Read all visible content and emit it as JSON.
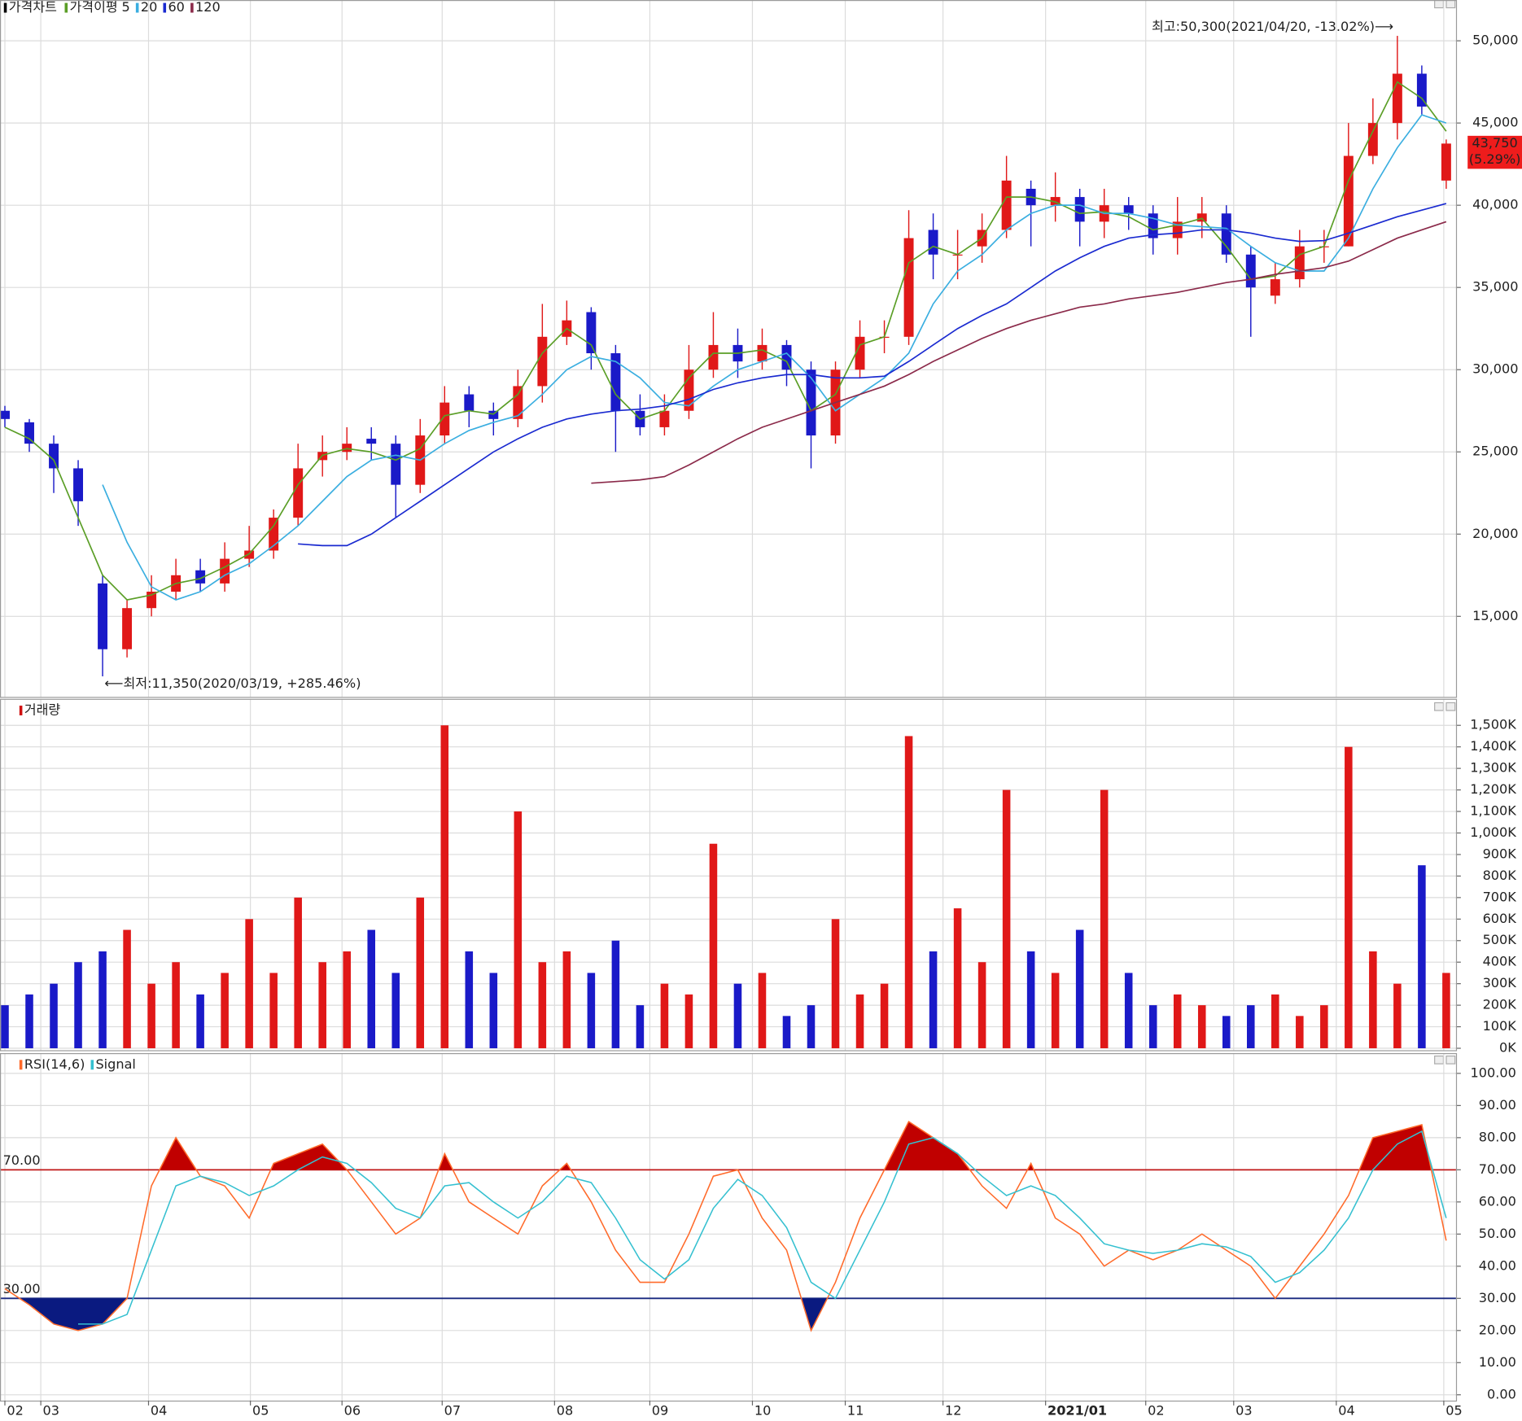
{
  "chart_data": [
    {
      "type": "candlestick",
      "title": "가격차트",
      "ma_title": "가격이평",
      "open": [
        27500,
        26800,
        25500,
        24000,
        17000,
        13000,
        15500,
        16500,
        17800,
        17000,
        18500,
        19000,
        21000,
        24500,
        25000,
        25800,
        25500,
        23000,
        26000,
        28500,
        27500,
        27000,
        29000,
        32000,
        33500,
        31000,
        27500,
        26500,
        27500,
        30000,
        31500,
        30500,
        31500,
        30000,
        26000,
        30000,
        32000,
        32000,
        38500,
        37000,
        37500,
        38500,
        41000,
        40000,
        40500,
        39000,
        40000,
        39500,
        38000,
        39000,
        39500,
        37000,
        34500,
        35500,
        37500,
        37500,
        43000,
        45000,
        48000,
        41500
      ],
      "high": [
        27800,
        27000,
        26000,
        24500,
        17500,
        16000,
        17500,
        18500,
        18500,
        19500,
        20500,
        21500,
        25500,
        26000,
        26500,
        26500,
        26000,
        27000,
        29000,
        29000,
        28000,
        30000,
        34000,
        34200,
        33800,
        31500,
        28500,
        28500,
        31500,
        33500,
        32500,
        32500,
        31800,
        30500,
        30500,
        33000,
        33000,
        39700,
        39500,
        38500,
        39500,
        43000,
        41500,
        42000,
        41000,
        41000,
        40500,
        40000,
        40500,
        40500,
        40000,
        37500,
        36500,
        38500,
        38500,
        45000,
        46500,
        50300,
        48500,
        44000
      ],
      "low": [
        26500,
        25000,
        22500,
        20500,
        11350,
        12500,
        15000,
        16000,
        16500,
        16500,
        18000,
        18500,
        20500,
        23500,
        24500,
        24500,
        21000,
        22500,
        25500,
        26500,
        26000,
        26500,
        28000,
        31500,
        30000,
        25000,
        26000,
        26000,
        27000,
        29500,
        29500,
        30000,
        29000,
        24000,
        25500,
        29500,
        31000,
        31500,
        35500,
        35500,
        36500,
        38000,
        37500,
        39000,
        37500,
        38000,
        38500,
        37000,
        37000,
        38000,
        36500,
        32000,
        34000,
        35000,
        36500,
        37500,
        42500,
        44000,
        45500,
        41000
      ],
      "close": [
        27000,
        25500,
        24000,
        22000,
        13000,
        15500,
        16500,
        17500,
        17000,
        18500,
        19000,
        21000,
        24000,
        25000,
        25500,
        25500,
        23000,
        26000,
        28000,
        27500,
        27000,
        29000,
        32000,
        33000,
        31000,
        27500,
        26500,
        27500,
        30000,
        31500,
        30500,
        31500,
        30000,
        26000,
        30000,
        32000,
        32000,
        38000,
        37000,
        37000,
        38500,
        41500,
        40000,
        40500,
        39000,
        40000,
        39500,
        38000,
        39000,
        39500,
        37000,
        35000,
        35500,
        37500,
        37500,
        43000,
        45000,
        48000,
        46000,
        43750
      ],
      "up_color": "#e01818",
      "down_color": "#1a1ac8",
      "series": [
        {
          "name": "5",
          "color": "#5a9e26",
          "values": [
            26500,
            25800,
            24500,
            21000,
            17500,
            16000,
            16300,
            17000,
            17300,
            18000,
            18800,
            20500,
            23000,
            24800,
            25200,
            25000,
            24500,
            25200,
            27200,
            27500,
            27300,
            28500,
            31000,
            32500,
            31500,
            28500,
            27000,
            27500,
            29500,
            31000,
            31000,
            31200,
            30500,
            27500,
            28500,
            31500,
            32000,
            36500,
            37500,
            37000,
            38000,
            40500,
            40500,
            40200,
            39500,
            39600,
            39300,
            38500,
            38800,
            39200,
            37500,
            35500,
            35700,
            37000,
            37500,
            41500,
            44500,
            47500,
            46500,
            44500
          ]
        },
        {
          "name": "20",
          "color": "#3aaee0",
          "values": [
            null,
            null,
            null,
            null,
            23000,
            19500,
            16800,
            16000,
            16500,
            17500,
            18200,
            19300,
            20500,
            22000,
            23500,
            24500,
            24800,
            24500,
            25500,
            26300,
            26800,
            27200,
            28500,
            30000,
            30800,
            30500,
            29500,
            28000,
            27800,
            29000,
            30000,
            30500,
            31000,
            29500,
            27500,
            28500,
            29500,
            31000,
            34000,
            36000,
            37000,
            38500,
            39500,
            40000,
            40000,
            39500,
            39500,
            39200,
            38800,
            38700,
            38600,
            37500,
            36500,
            36000,
            36000,
            38000,
            41000,
            43500,
            45500,
            45000
          ]
        },
        {
          "name": "60",
          "color": "#1a2ad0",
          "values": [
            null,
            null,
            null,
            null,
            null,
            null,
            null,
            null,
            null,
            null,
            null,
            null,
            19400,
            19300,
            19300,
            20000,
            21000,
            22000,
            23000,
            24000,
            25000,
            25800,
            26500,
            27000,
            27300,
            27500,
            27600,
            27800,
            28200,
            28800,
            29200,
            29500,
            29700,
            29700,
            29500,
            29500,
            29600,
            30500,
            31500,
            32500,
            33300,
            34000,
            35000,
            36000,
            36800,
            37500,
            38000,
            38200,
            38300,
            38500,
            38500,
            38300,
            38000,
            37800,
            37850,
            38300,
            38800,
            39300,
            39700,
            40100
          ]
        },
        {
          "name": "120",
          "color": "#8b2a4a",
          "values": [
            null,
            null,
            null,
            null,
            null,
            null,
            null,
            null,
            null,
            null,
            null,
            null,
            null,
            null,
            null,
            null,
            null,
            null,
            null,
            null,
            null,
            null,
            null,
            null,
            23100,
            23200,
            23300,
            23500,
            24200,
            25000,
            25800,
            26500,
            27000,
            27500,
            28000,
            28500,
            29000,
            29700,
            30500,
            31200,
            31900,
            32500,
            33000,
            33400,
            33800,
            34000,
            34300,
            34500,
            34700,
            35000,
            35300,
            35500,
            35800,
            36000,
            36200,
            36600,
            37300,
            38000,
            38500,
            39000
          ]
        }
      ],
      "xlim": [
        -0.2,
        59.4
      ],
      "ylim": [
        10100,
        52480
      ],
      "yticks": [
        {
          "value": 15000,
          "label": "15,000"
        },
        {
          "value": 20000,
          "label": "20,000"
        },
        {
          "value": 25000,
          "label": "25,000"
        },
        {
          "value": 30000,
          "label": "30,000"
        },
        {
          "value": 35000,
          "label": "35,000"
        },
        {
          "value": 40000,
          "label": "40,000"
        },
        {
          "value": 45000,
          "label": "45,000"
        },
        {
          "value": 50000,
          "label": "50,000"
        }
      ],
      "grid": true,
      "annotations": {
        "high": "최고:50,300(2021/04/20, -13.02%)⟶",
        "low": "⟵최저:11,350(2020/03/19, +285.46%)"
      },
      "last": {
        "value": 43750,
        "label": "43,750",
        "change": "(5.29%)"
      }
    },
    {
      "type": "bar",
      "title": "거래량",
      "title_color": "#d01010",
      "values": [
        200000,
        250000,
        300000,
        400000,
        450000,
        550000,
        300000,
        400000,
        250000,
        350000,
        600000,
        350000,
        700000,
        400000,
        450000,
        550000,
        350000,
        700000,
        1500000,
        450000,
        350000,
        1100000,
        400000,
        450000,
        350000,
        500000,
        200000,
        300000,
        250000,
        950000,
        300000,
        350000,
        150000,
        200000,
        600000,
        250000,
        300000,
        1450000,
        450000,
        650000,
        400000,
        1200000,
        450000,
        350000,
        550000,
        1200000,
        350000,
        200000,
        250000,
        200000,
        150000,
        200000,
        250000,
        150000,
        200000,
        1400000,
        450000,
        300000,
        850000,
        350000
      ],
      "xlim": [
        -0.2,
        59.4
      ],
      "ylim": [
        0,
        1623000
      ],
      "yticks": [
        {
          "value": 0,
          "label": "0K"
        },
        {
          "value": 100000,
          "label": "100K"
        },
        {
          "value": 200000,
          "label": "200K"
        },
        {
          "value": 300000,
          "label": "300K"
        },
        {
          "value": 400000,
          "label": "400K"
        },
        {
          "value": 500000,
          "label": "500K"
        },
        {
          "value": 600000,
          "label": "600K"
        },
        {
          "value": 700000,
          "label": "700K"
        },
        {
          "value": 800000,
          "label": "800K"
        },
        {
          "value": 900000,
          "label": "900K"
        },
        {
          "value": 1000000,
          "label": "1,000K"
        },
        {
          "value": 1100000,
          "label": "1,100K"
        },
        {
          "value": 1200000,
          "label": "1,200K"
        },
        {
          "value": 1300000,
          "label": "1,300K"
        },
        {
          "value": 1400000,
          "label": "1,400K"
        },
        {
          "value": 1500000,
          "label": "1,500K"
        }
      ],
      "grid": true
    },
    {
      "type": "line",
      "series": [
        {
          "name": "RSI(14,6)",
          "color": "#ff6a2a",
          "values": [
            33,
            28,
            22,
            20,
            22,
            30,
            65,
            80,
            68,
            65,
            55,
            72,
            75,
            78,
            70,
            60,
            50,
            55,
            75,
            60,
            55,
            50,
            65,
            72,
            60,
            45,
            35,
            35,
            50,
            68,
            70,
            55,
            45,
            20,
            35,
            55,
            70,
            85,
            80,
            75,
            65,
            58,
            72,
            55,
            50,
            40,
            45,
            42,
            45,
            50,
            45,
            40,
            30,
            40,
            50,
            62,
            80,
            82,
            84,
            48
          ]
        },
        {
          "name": "Signal",
          "color": "#35c0d0",
          "values": [
            null,
            null,
            null,
            22,
            22,
            25,
            45,
            65,
            68,
            66,
            62,
            65,
            70,
            74,
            72,
            66,
            58,
            55,
            65,
            66,
            60,
            55,
            60,
            68,
            66,
            55,
            42,
            36,
            42,
            58,
            67,
            62,
            52,
            35,
            30,
            45,
            60,
            78,
            80,
            75,
            68,
            62,
            65,
            62,
            55,
            47,
            45,
            44,
            45,
            47,
            46,
            43,
            35,
            38,
            45,
            55,
            70,
            78,
            82,
            55
          ]
        }
      ],
      "thresholds": [
        {
          "value": 70,
          "label": "70.00",
          "color": "#c01818",
          "fill": "#c00000"
        },
        {
          "value": 30,
          "label": "30.00",
          "color": "#1a2a80",
          "fill": "#0a1a80"
        }
      ],
      "xlim": [
        -0.2,
        59.4
      ],
      "ylim": [
        0,
        106.3
      ],
      "yticks": [
        {
          "value": 0,
          "label": "0.00"
        },
        {
          "value": 10,
          "label": "10.00"
        },
        {
          "value": 20,
          "label": "20.00"
        },
        {
          "value": 30,
          "label": "30.00"
        },
        {
          "value": 40,
          "label": "40.00"
        },
        {
          "value": 50,
          "label": "50.00"
        },
        {
          "value": 60,
          "label": "60.00"
        },
        {
          "value": 70,
          "label": "70.00"
        },
        {
          "value": 80,
          "label": "80.00"
        },
        {
          "value": 90,
          "label": "90.00"
        },
        {
          "value": 100,
          "label": "100.00"
        }
      ],
      "xticks": [
        {
          "value": 0,
          "label": "02"
        },
        {
          "value": 1.47,
          "label": "03"
        },
        {
          "value": 5.88,
          "label": "04"
        },
        {
          "value": 10.05,
          "label": "05"
        },
        {
          "value": 13.8,
          "label": "06"
        },
        {
          "value": 17.9,
          "label": "07"
        },
        {
          "value": 22.5,
          "label": "08"
        },
        {
          "value": 26.4,
          "label": "09"
        },
        {
          "value": 30.6,
          "label": "10"
        },
        {
          "value": 34.4,
          "label": "11"
        },
        {
          "value": 38.4,
          "label": "12"
        },
        {
          "value": 42.6,
          "label": "2021/01"
        },
        {
          "value": 46.7,
          "label": "02"
        },
        {
          "value": 50.3,
          "label": "03"
        },
        {
          "value": 54.5,
          "label": "04"
        },
        {
          "value": 58.9,
          "label": "05"
        }
      ],
      "grid": true
    }
  ]
}
